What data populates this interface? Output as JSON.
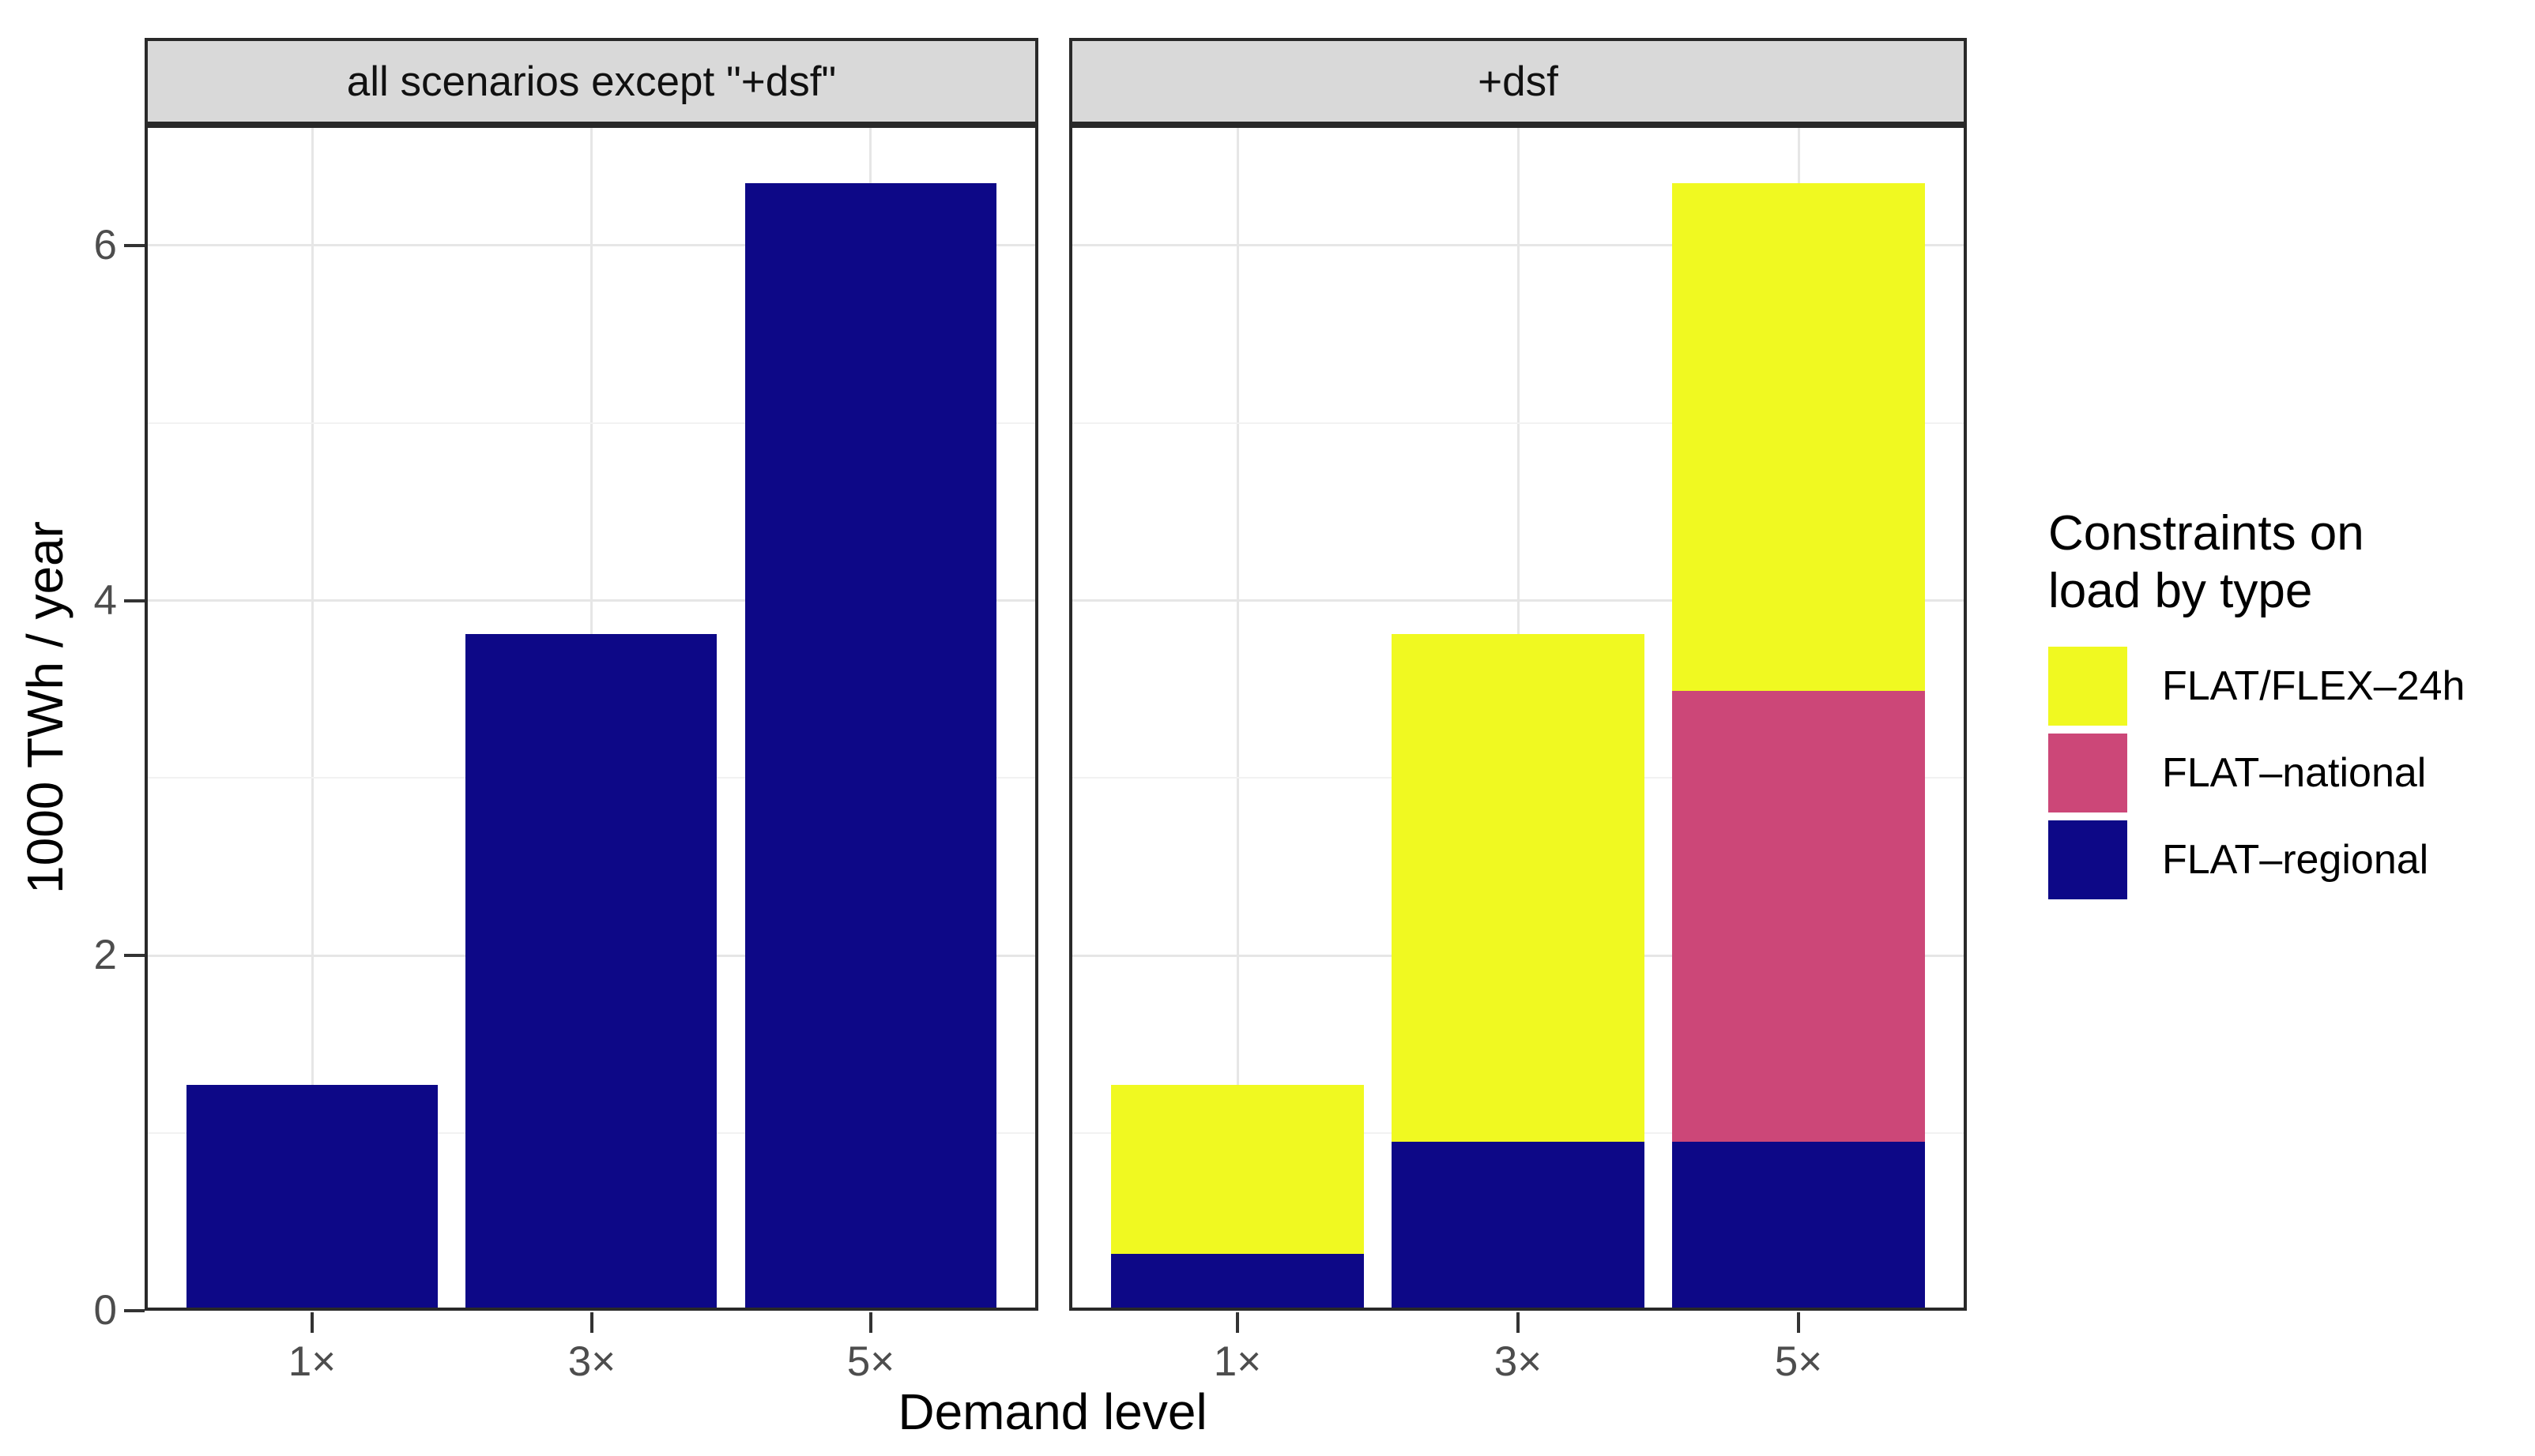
{
  "chart_data": {
    "type": "bar",
    "stacked": true,
    "title": "",
    "xlabel": "Demand level",
    "ylabel": "1000 TWh / year",
    "ylim": [
      0,
      6.68
    ],
    "y_ticks": [
      0,
      2,
      4,
      6
    ],
    "y_minor_ticks": [
      1,
      3,
      5
    ],
    "grid": "on",
    "categories": [
      "1×",
      "3×",
      "5×"
    ],
    "facets": [
      {
        "label": "all scenarios except \"+dsf\"",
        "categories": [
          "1×",
          "3×",
          "5×"
        ],
        "series": [
          {
            "name": "FLAT–regional",
            "color": "#0D0887",
            "values": [
              1.27,
              3.81,
              6.35
            ]
          },
          {
            "name": "FLAT–national",
            "color": "#CC4778",
            "values": [
              0,
              0,
              0
            ]
          },
          {
            "name": "FLAT/FLEX–24h",
            "color": "#F0F921",
            "values": [
              0,
              0,
              0
            ]
          }
        ],
        "totals": [
          1.27,
          3.81,
          6.35
        ]
      },
      {
        "label": "+dsf",
        "categories": [
          "1×",
          "3×",
          "5×"
        ],
        "series": [
          {
            "name": "FLAT–regional",
            "color": "#0D0887",
            "values": [
              0.32,
              0.95,
              0.95
            ]
          },
          {
            "name": "FLAT–national",
            "color": "#CC4778",
            "values": [
              0,
              0,
              2.54
            ]
          },
          {
            "name": "FLAT/FLEX–24h",
            "color": "#F0F921",
            "values": [
              0.95,
              2.86,
              2.86
            ]
          }
        ],
        "totals": [
          1.27,
          3.81,
          6.35
        ]
      }
    ],
    "legend": {
      "title": "Constraints on\nload by type",
      "position": "right",
      "entries": [
        {
          "label": "FLAT/FLEX–24h",
          "color": "#F0F921"
        },
        {
          "label": "FLAT–national",
          "color": "#CC4778"
        },
        {
          "label": "FLAT–regional",
          "color": "#0D0887"
        }
      ]
    },
    "colors": {
      "strip_background": "#D9D9D9",
      "panel_border": "#292929",
      "grid_major": "#E6E6E6",
      "grid_minor": "#F2F2F2",
      "tick_label": "#4D4D4D",
      "tick_mark": "#333333"
    }
  }
}
